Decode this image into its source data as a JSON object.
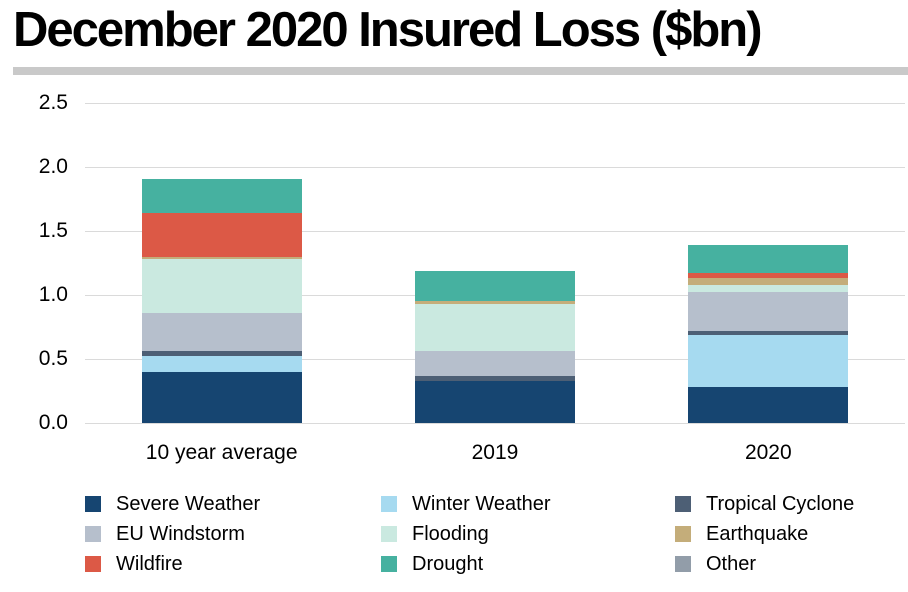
{
  "chart_data": {
    "type": "bar",
    "stacked": true,
    "title": "December 2020 Insured Loss ($bn)",
    "categories": [
      "10 year average",
      "2019",
      "2020"
    ],
    "series": [
      {
        "name": "Severe Weather",
        "color": "#164571",
        "values": [
          0.4,
          0.33,
          0.28
        ]
      },
      {
        "name": "Winter Weather",
        "color": "#a6daf0",
        "values": [
          0.12,
          0,
          0.41
        ]
      },
      {
        "name": "Tropical Cyclone",
        "color": "#4d5f75",
        "values": [
          0.04,
          0.04,
          0.03
        ]
      },
      {
        "name": "EU Windstorm",
        "color": "#b6bfcc",
        "values": [
          0.3,
          0.19,
          0.3
        ]
      },
      {
        "name": "Flooding",
        "color": "#cae9e0",
        "values": [
          0.42,
          0.37,
          0.06
        ]
      },
      {
        "name": "Earthquake",
        "color": "#c4ad7a",
        "values": [
          0.02,
          0.02,
          0.05
        ]
      },
      {
        "name": "Wildfire",
        "color": "#dc5946",
        "values": [
          0.34,
          0,
          0.04
        ]
      },
      {
        "name": "Drought",
        "color": "#46b1a0",
        "values": [
          0.27,
          0.24,
          0.22
        ]
      },
      {
        "name": "Other",
        "color": "#929da9",
        "values": [
          0,
          0,
          0
        ]
      }
    ],
    "totals": [
      1.91,
      1.19,
      1.39
    ],
    "yticks": [
      "0.0",
      "0.5",
      "1.0",
      "1.5",
      "2.0",
      "2.5"
    ],
    "ylim": [
      0,
      2.5
    ],
    "grid": true,
    "legend_position": "bottom",
    "legend_columns": 3
  },
  "colors": {
    "divider": "#c9c9c9",
    "gridline": "#dadada",
    "title_text": "#000000"
  }
}
